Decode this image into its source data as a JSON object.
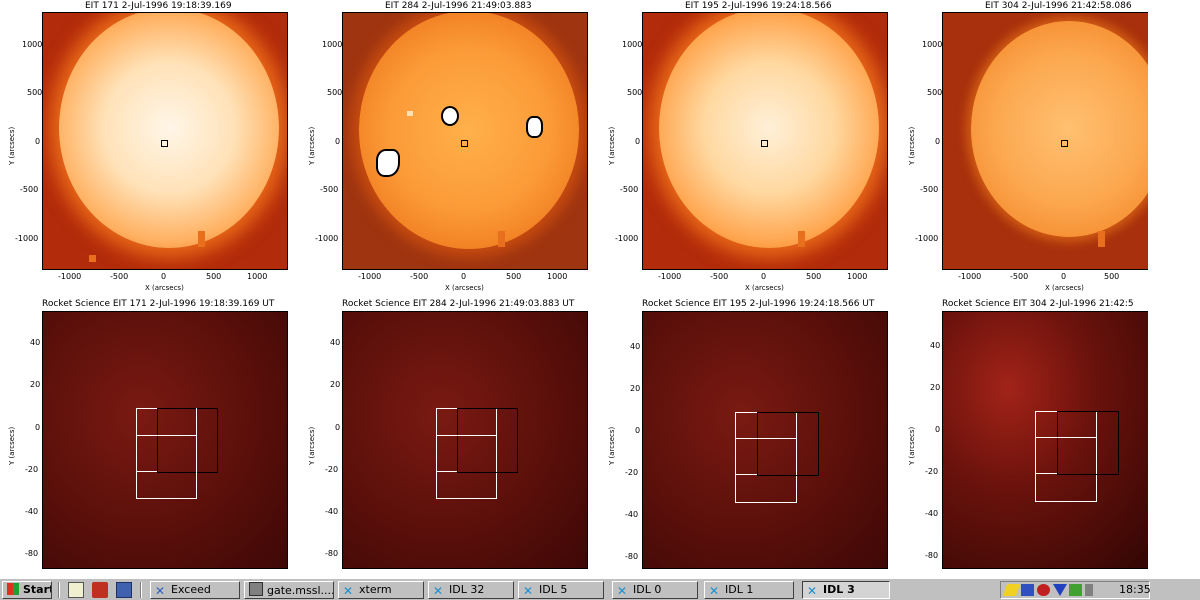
{
  "top_panels": [
    {
      "title": "EIT 171   2-Jul-1996 19:18:39.169",
      "xlabel": "X (arcsecs)",
      "ylabel": "Y (arcsecs)",
      "xticks": [
        "-1000",
        "-500",
        "0",
        "500",
        "1000"
      ],
      "yticks": [
        "1000",
        "500",
        "0",
        "-500",
        "-1000"
      ]
    },
    {
      "title": "EIT 284   2-Jul-1996 21:49:03.883",
      "xlabel": "X (arcsecs)",
      "ylabel": "Y (arcsecs)",
      "xticks": [
        "-1000",
        "-500",
        "0",
        "500",
        "1000"
      ],
      "yticks": [
        "1000",
        "500",
        "0",
        "-500",
        "-1000"
      ]
    },
    {
      "title": "EIT 195   2-Jul-1996 19:24:18.566",
      "xlabel": "X (arcsecs)",
      "ylabel": "Y (arcsecs)",
      "xticks": [
        "-1000",
        "-500",
        "0",
        "500",
        "1000"
      ],
      "yticks": [
        "1000",
        "500",
        "0",
        "-500",
        "-1000"
      ]
    },
    {
      "title": "EIT 304   2-Jul-1996 21:42:58.086",
      "xlabel": "X (arcsecs)",
      "ylabel": "Y (arcsecs)",
      "xticks": [
        "-1000",
        "-500",
        "0",
        "500"
      ],
      "yticks": [
        "1000",
        "500",
        "0",
        "-500",
        "-1000"
      ]
    }
  ],
  "bottom_panels": [
    {
      "title": "Rocket Science EIT 171   2-Jul-1996 19:18:39.169 UT",
      "ylabel": "Y (arcsecs)",
      "yticks": [
        "40",
        "20",
        "0",
        "-20",
        "-40",
        "-60",
        "-80"
      ]
    },
    {
      "title": "Rocket Science EIT 284   2-Jul-1996 21:49:03.883 UT",
      "ylabel": "Y (arcsecs)",
      "yticks": [
        "40",
        "20",
        "0",
        "-20",
        "-40",
        "-60",
        "-80"
      ]
    },
    {
      "title": "Rocket Science EIT 195   2-Jul-1996 19:24:18.566 UT",
      "ylabel": "Y (arcsecs)",
      "yticks": [
        "40",
        "20",
        "0",
        "-20",
        "-40",
        "-60",
        "-80"
      ]
    },
    {
      "title": "Rocket Science EIT 304   2-Jul-1996 21:42:5",
      "ylabel": "Y (arcsecs)",
      "yticks": [
        "40",
        "20",
        "0",
        "-20",
        "-40",
        "-60",
        "-80"
      ]
    }
  ],
  "taskbar": {
    "start": "Start",
    "buttons": [
      {
        "label": "Exceed",
        "icon": "exceed-icon",
        "pressed": false
      },
      {
        "label": "gate.mssl....",
        "icon": "telnet-icon",
        "pressed": false
      },
      {
        "label": "xterm",
        "icon": "x-icon",
        "pressed": false
      },
      {
        "label": "IDL 32",
        "icon": "x-icon",
        "pressed": false
      },
      {
        "label": "IDL 5",
        "icon": "x-icon",
        "pressed": false
      },
      {
        "label": "IDL 0",
        "icon": "x-icon",
        "pressed": false
      },
      {
        "label": "IDL 1",
        "icon": "x-icon",
        "pressed": false
      },
      {
        "label": "IDL 3",
        "icon": "x-icon",
        "pressed": true
      }
    ],
    "clock": "18:35"
  }
}
